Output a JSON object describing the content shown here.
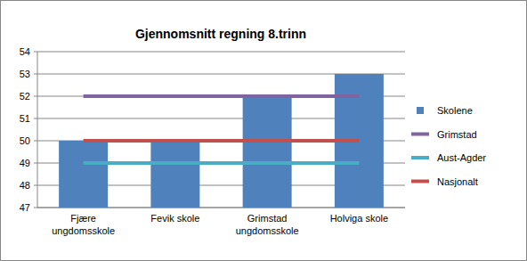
{
  "chart_data": {
    "type": "bar",
    "title": "Gjennomsnitt regning 8.trinn",
    "categories": [
      "Fjære ungdomsskole",
      "Fevik skole",
      "Grimstad ungdomsskole",
      "Holviga skole"
    ],
    "series": [
      {
        "name": "Skolene",
        "type": "bar",
        "color": "#4f81bd",
        "values": [
          50,
          50,
          52,
          53
        ]
      },
      {
        "name": "Grimstad",
        "type": "line",
        "color": "#8064a2",
        "values": [
          52,
          52,
          52,
          52
        ]
      },
      {
        "name": "Aust-Agder",
        "type": "line",
        "color": "#4bacc6",
        "values": [
          49,
          49,
          49,
          49
        ]
      },
      {
        "name": "Nasjonalt",
        "type": "line",
        "color": "#c0504d",
        "values": [
          50,
          50,
          50,
          50
        ]
      }
    ],
    "ylim": [
      47,
      54
    ],
    "yticks": [
      47,
      48,
      49,
      50,
      51,
      52,
      53,
      54
    ],
    "grid": true,
    "legend": "right"
  }
}
